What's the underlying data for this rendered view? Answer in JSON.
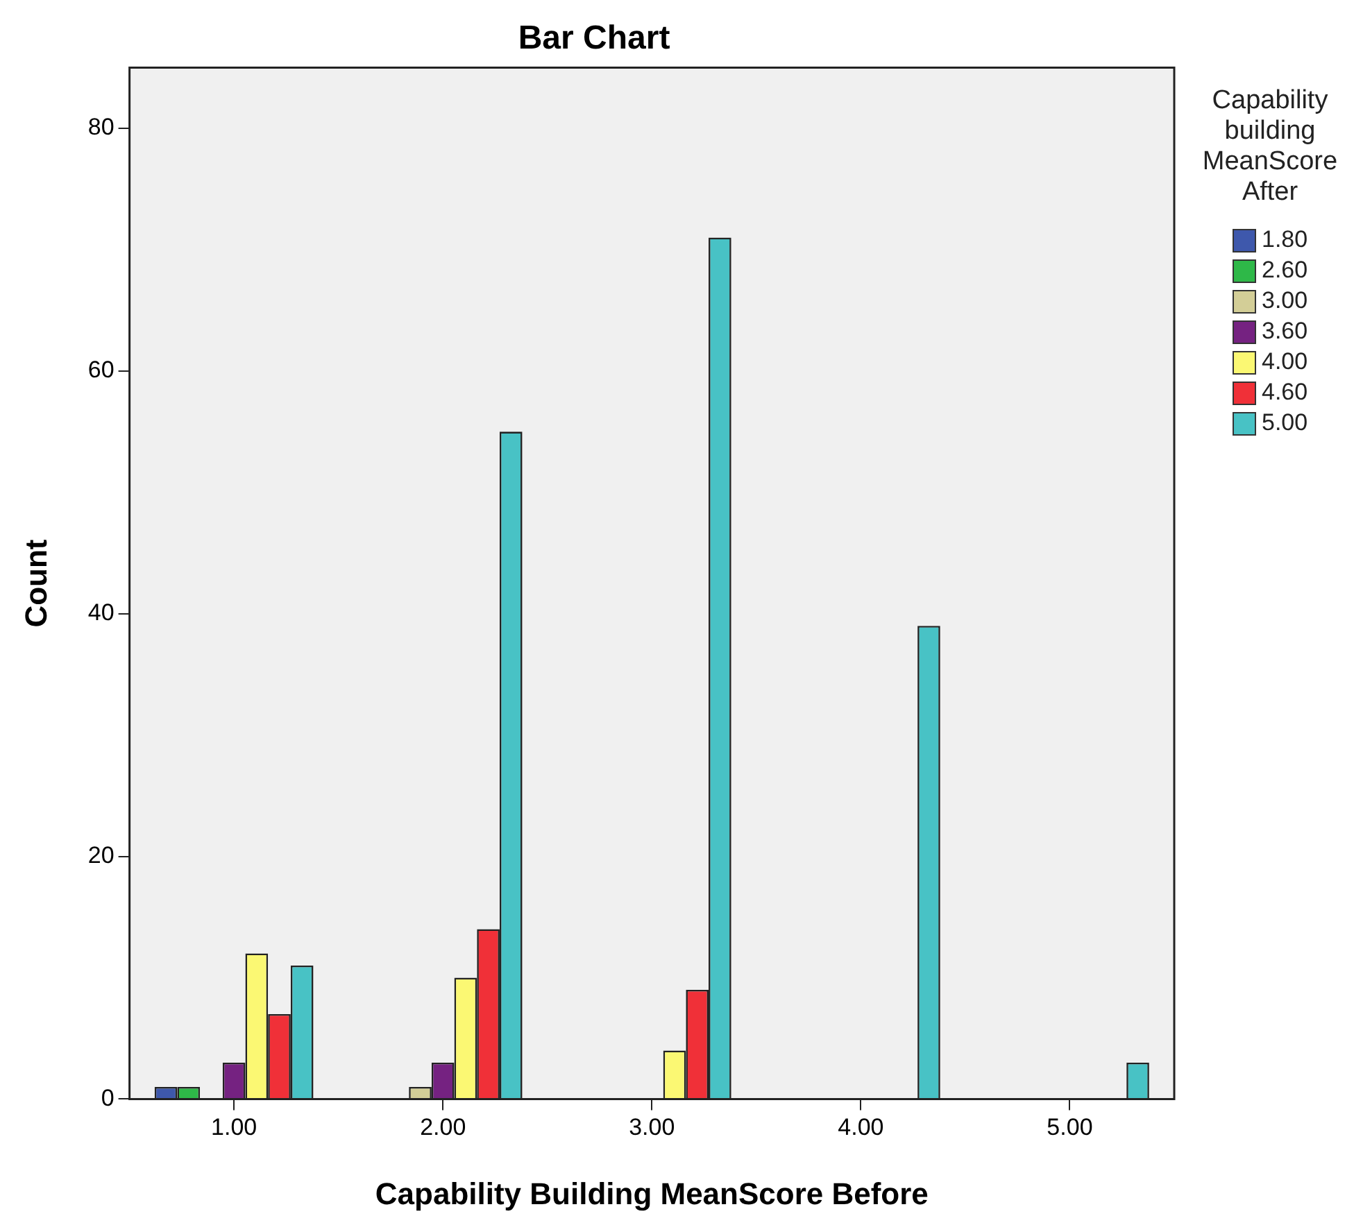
{
  "chart_data": {
    "type": "bar",
    "title": "Bar Chart",
    "xlabel": "Capability Building MeanScore Before",
    "ylabel": "Count",
    "legend_title": "Capability building MeanScore After",
    "legend": "right",
    "categories": [
      "1.00",
      "2.00",
      "3.00",
      "4.00",
      "5.00"
    ],
    "ylim": [
      0,
      85
    ],
    "yticks": [
      0,
      20,
      40,
      60,
      80
    ],
    "series": [
      {
        "name": "1.80",
        "color": "#3e58ac",
        "values": [
          1,
          null,
          null,
          null,
          null
        ]
      },
      {
        "name": "2.60",
        "color": "#2eb848",
        "values": [
          1,
          null,
          null,
          null,
          null
        ]
      },
      {
        "name": "3.00",
        "color": "#d3ce97",
        "values": [
          null,
          1,
          null,
          null,
          null
        ]
      },
      {
        "name": "3.60",
        "color": "#752281",
        "values": [
          3,
          3,
          null,
          null,
          null
        ]
      },
      {
        "name": "4.00",
        "color": "#fbf873",
        "values": [
          12,
          10,
          4,
          null,
          null
        ]
      },
      {
        "name": "4.60",
        "color": "#f03038",
        "values": [
          7,
          14,
          9,
          null,
          null
        ]
      },
      {
        "name": "5.00",
        "color": "#48c2c5",
        "values": [
          11,
          55,
          71,
          39,
          3
        ]
      }
    ]
  }
}
